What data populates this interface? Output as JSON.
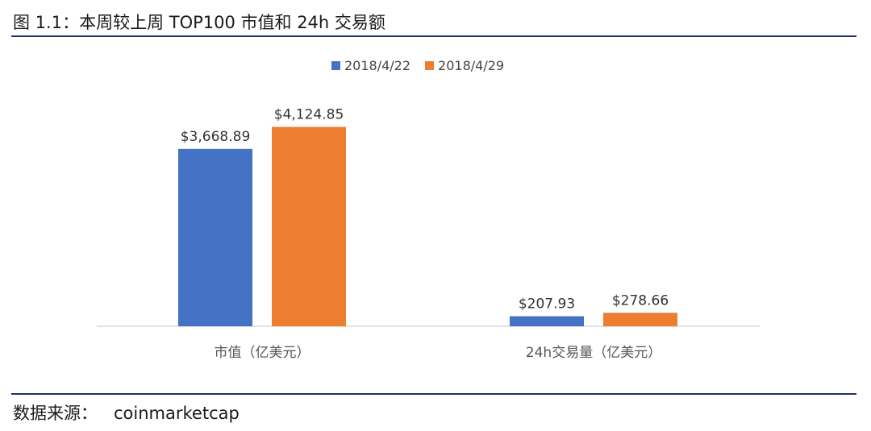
{
  "figure": {
    "title": "图 1.1：本周较上周 TOP100 市值和 24h 交易额",
    "source_label": "数据来源：",
    "source_value": "coinmarketcap"
  },
  "chart_data": {
    "type": "bar",
    "title": "",
    "categories": [
      "市值（亿美元）",
      "24h交易量（亿美元）"
    ],
    "series": [
      {
        "name": "2018/4/22",
        "color": "#4472C4",
        "values": [
          3668.89,
          207.93
        ],
        "labels": [
          "$3,668.89",
          "$207.93"
        ]
      },
      {
        "name": "2018/4/29",
        "color": "#ED7D31",
        "values": [
          4124.85,
          278.66
        ],
        "labels": [
          "$4,124.85",
          "$278.66"
        ]
      }
    ],
    "ylim": [
      0,
      5000
    ],
    "legend": "top-center",
    "grid": false,
    "axis_color": "#d9d9d9"
  }
}
